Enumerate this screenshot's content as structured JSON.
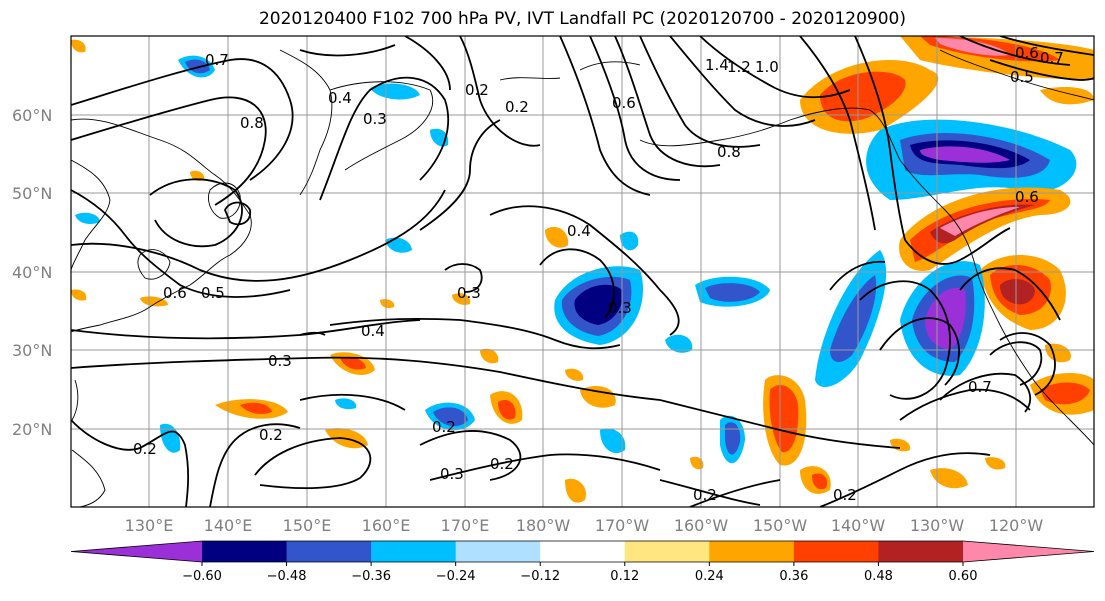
{
  "title": "2020120400 F102 700 hPa PV, IVT Landfall PC (2020120700 - 2020120900)",
  "lat_labels": [
    "60°N",
    "50°N",
    "40°N",
    "30°N",
    "20°N"
  ],
  "lon_labels": [
    "130°E",
    "140°E",
    "150°E",
    "160°E",
    "170°E",
    "180°W",
    "170°W",
    "160°W",
    "150°W",
    "140°W",
    "130°W",
    "120°W"
  ],
  "colorbar": {
    "ticks": [
      "−0.60",
      "−0.48",
      "−0.36",
      "−0.24",
      "−0.12",
      "0.12",
      "0.24",
      "0.36",
      "0.48",
      "0.60"
    ],
    "colors": [
      "#9b30d9",
      "#000080",
      "#3355cc",
      "#00bfff",
      "#b0e0ff",
      "#ffffff",
      "#ffe680",
      "#ffa500",
      "#ff4000",
      "#b22222",
      "#ff88aa"
    ]
  },
  "contour_labels": [
    "0.7",
    "0.8",
    "0.4",
    "0.3",
    "0.2",
    "0.2",
    "0.6",
    "0.5",
    "0.3",
    "0.4",
    "0.3",
    "0.2",
    "0.2",
    "0.3",
    "0.2",
    "0.2",
    "0.2",
    "0.4",
    "0.3",
    "0.2",
    "0.7",
    "0.6",
    "0.5",
    "1.4",
    "1.2",
    "1.0",
    "0.8",
    "0.6",
    "0.6",
    "0.7"
  ]
}
